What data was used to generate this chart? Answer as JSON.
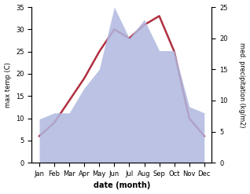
{
  "months": [
    "Jan",
    "Feb",
    "Mar",
    "Apr",
    "May",
    "Jun",
    "Jul",
    "Aug",
    "Sep",
    "Oct",
    "Nov",
    "Dec"
  ],
  "month_x": [
    1,
    2,
    3,
    4,
    5,
    6,
    7,
    8,
    9,
    10,
    11,
    12
  ],
  "temperature": [
    6,
    9,
    14,
    19,
    25,
    30,
    28,
    31,
    33,
    25,
    10,
    6
  ],
  "precipitation": [
    7,
    8,
    8,
    12,
    15,
    25,
    20,
    23,
    18,
    18,
    9,
    8
  ],
  "temp_color": "#b03040",
  "precip_color_fill": "#b0b8e0",
  "ylabel_left": "max temp (C)",
  "ylabel_right": "med. precipitation (kg/m2)",
  "xlabel": "date (month)",
  "ylim_left": [
    0,
    35
  ],
  "ylim_right": [
    0,
    25
  ],
  "yticks_left": [
    0,
    5,
    10,
    15,
    20,
    25,
    30,
    35
  ],
  "yticks_right": [
    0,
    5,
    10,
    15,
    20,
    25
  ],
  "background_color": "#ffffff",
  "temp_linewidth": 1.8
}
